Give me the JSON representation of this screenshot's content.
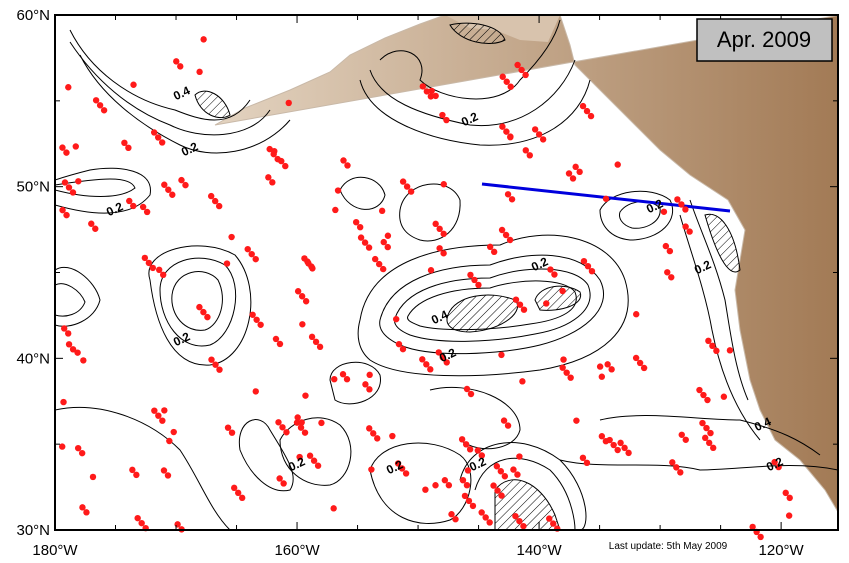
{
  "map_label": "Apr. 2009",
  "footer": "Last update: 5th May 2009",
  "x_labels": [
    "180°W",
    "160°W",
    "140°W",
    "120°W"
  ],
  "y_labels": [
    "60°N",
    "50°N",
    "40°N",
    "30°N"
  ],
  "contour_labels": [
    "0.4",
    "0.2",
    "0.2",
    "0.2",
    "0.2",
    "0.2",
    "0.4",
    "0.2",
    "0.2",
    "0.2",
    "0.2",
    "0.2",
    "0.2",
    "0.4",
    "0.2"
  ]
}
